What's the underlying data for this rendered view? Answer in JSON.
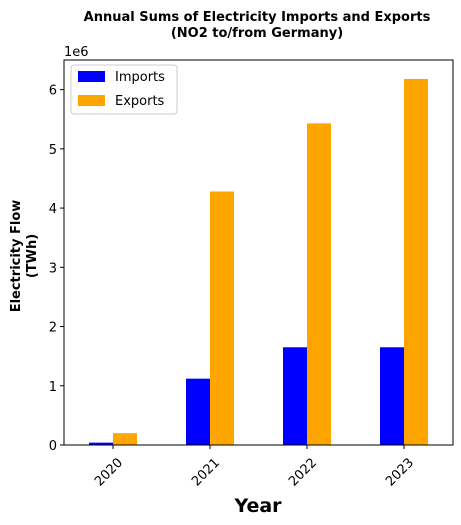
{
  "chart_data": {
    "type": "bar",
    "title": "Annual Sums of Electricity Imports and Exports",
    "subtitle": "(NO2 to/from Germany)",
    "xlabel": "Year",
    "ylabel_lines": [
      "Electricity Flow",
      "(TWh)"
    ],
    "y_offset_label": "1e6",
    "categories": [
      "2020",
      "2021",
      "2022",
      "2023"
    ],
    "series": [
      {
        "name": "Imports",
        "color": "#0000ff",
        "values": [
          40000,
          1120000,
          1650000,
          1650000
        ]
      },
      {
        "name": "Exports",
        "color": "#ffa500",
        "values": [
          200000,
          4280000,
          5430000,
          6180000
        ]
      }
    ],
    "ylim": [
      0,
      6500000
    ],
    "y_ticks": [
      0,
      1000000,
      2000000,
      3000000,
      4000000,
      5000000,
      6000000
    ],
    "y_tick_labels": [
      "0",
      "1",
      "2",
      "3",
      "4",
      "5",
      "6"
    ],
    "grid": false,
    "legend_position": "top-left",
    "x_tick_rotation": 45
  }
}
